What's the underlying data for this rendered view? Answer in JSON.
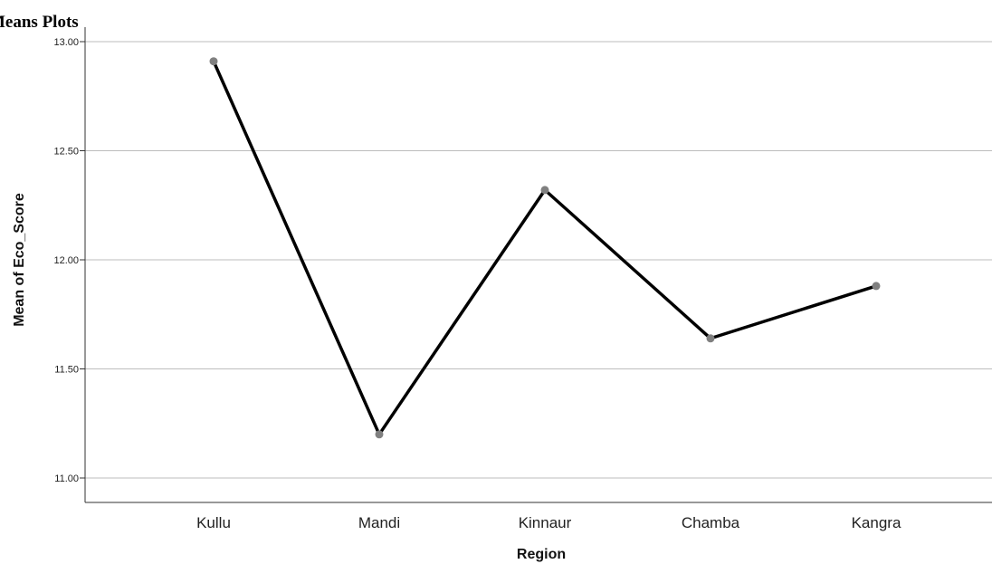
{
  "page": {
    "section_title": "Means Plots"
  },
  "chart_data": {
    "type": "line",
    "title": "",
    "xlabel": "Region",
    "ylabel": "Mean of Eco_Score",
    "categories": [
      "Kullu",
      "Mandi",
      "Kinnaur",
      "Chamba",
      "Kangra"
    ],
    "values": [
      12.91,
      11.2,
      12.32,
      11.64,
      11.88
    ],
    "ylim": [
      10.9,
      13.05
    ],
    "yticks": [
      11.0,
      11.5,
      12.0,
      12.5,
      13.0
    ],
    "ytick_labels": [
      "11.00",
      "11.50",
      "12.00",
      "12.50",
      "13.00"
    ],
    "grid": true,
    "legend": "none",
    "colors": {
      "line": "#000000",
      "marker": "#808080",
      "grid": "#bdbdbd",
      "axis": "#333333"
    }
  }
}
